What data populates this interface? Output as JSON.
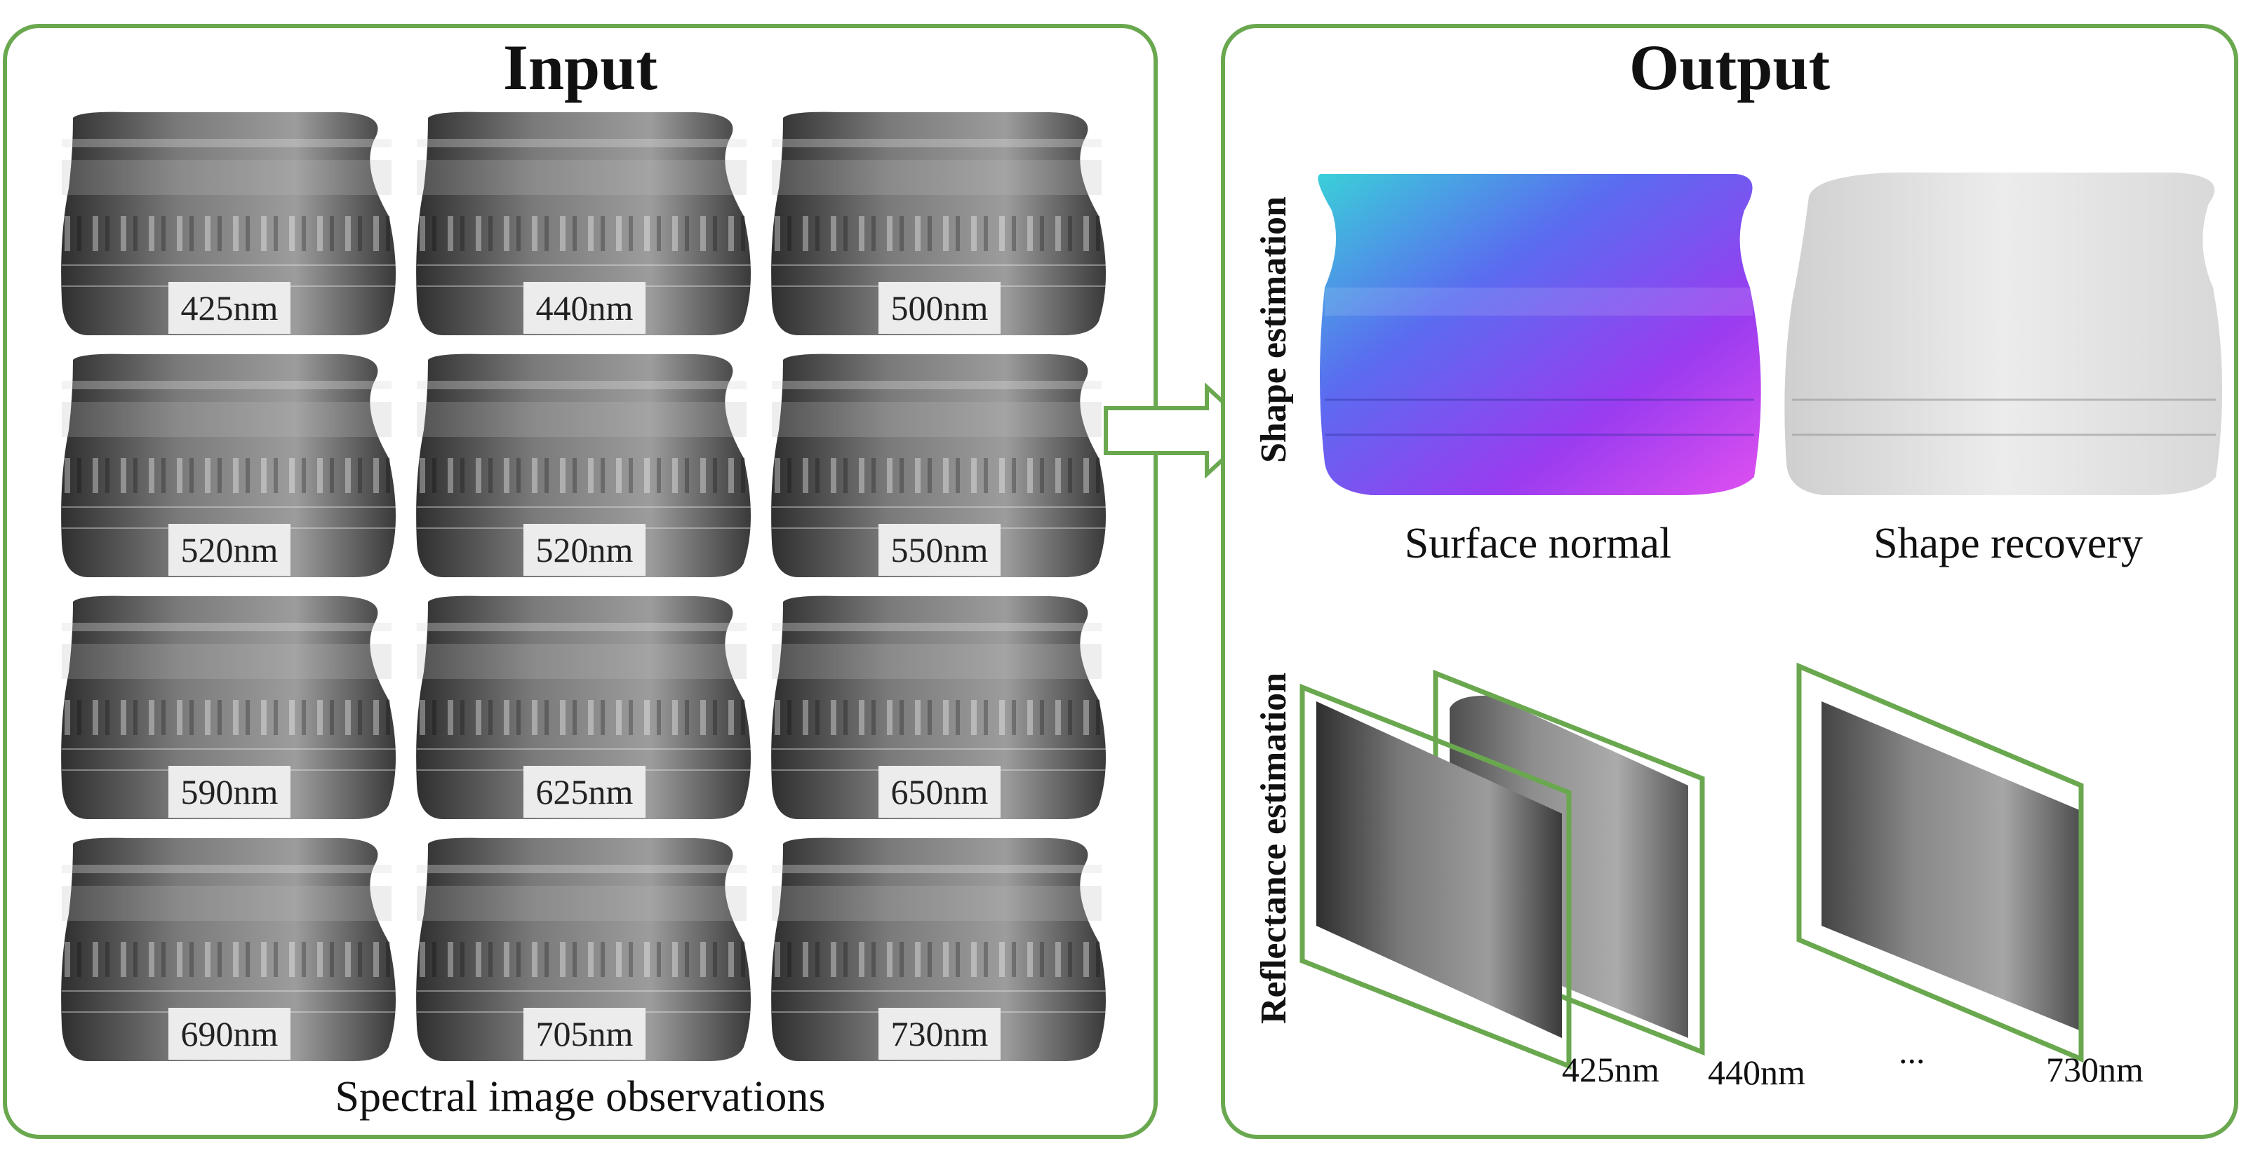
{
  "input": {
    "title": "Input",
    "caption": "Spectral image observations",
    "wavelengths": [
      "425nm",
      "440nm",
      "500nm",
      "520nm",
      "520nm",
      "550nm",
      "590nm",
      "625nm",
      "650nm",
      "690nm",
      "705nm",
      "730nm"
    ]
  },
  "output": {
    "title": "Output",
    "shape_label": "Shape estimation",
    "surface_normal_caption": "Surface normal",
    "shape_recovery_caption": "Shape recovery",
    "reflectance_label": "Reflectance estimation",
    "reflectance_wavelengths": [
      "425nm",
      "440nm",
      "730nm"
    ],
    "ellipsis": "..."
  },
  "colors": {
    "frame_green": "#6aa84f"
  }
}
